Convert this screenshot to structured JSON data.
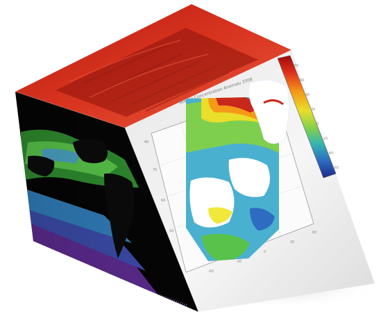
{
  "scene": {
    "subject": "3d-data-cube",
    "colors": {
      "top_face": "#c8281a",
      "top_face_dark": "#8e130c",
      "left_face_background": "#050505",
      "right_face": "#f2f2f2",
      "shadow": "#d2d2d2"
    }
  },
  "right_face_plot": {
    "title": "Sea Ice Concentration Anomaly 2008",
    "x_tick_labels": [
      "-60",
      "-30",
      "0",
      "30",
      "60"
    ],
    "y_tick_labels": [
      "50",
      "60",
      "70",
      "80"
    ],
    "colorbar_labels": [
      "80",
      "60",
      "40",
      "20",
      "0",
      "-20",
      "-40",
      "-60"
    ],
    "colorbar_colors": [
      "#9e0a0a",
      "#e0301a",
      "#f59a18",
      "#e9de2a",
      "#7fcf4e",
      "#35b6b0",
      "#2d6cc0",
      "#1d2a88"
    ]
  },
  "left_face_map": {
    "palette": [
      "#0b0b0b",
      "#2e8a2e",
      "#58c24a",
      "#4aa0c0",
      "#3a4aa6",
      "#6a2f98"
    ]
  }
}
